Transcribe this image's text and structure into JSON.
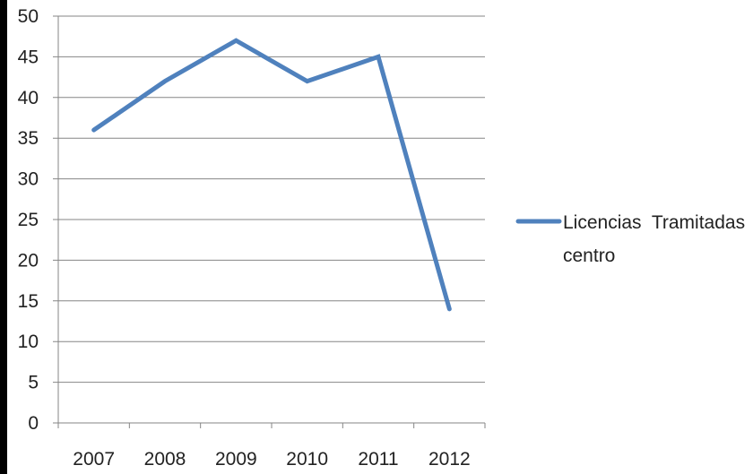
{
  "chart_data": {
    "type": "line",
    "categories": [
      "2007",
      "2008",
      "2009",
      "2010",
      "2011",
      "2012"
    ],
    "series": [
      {
        "name": "Licencias  Tramitadas centro",
        "name_lines": [
          "Licencias  Tramitadas",
          "centro"
        ],
        "values": [
          36,
          42,
          47,
          42,
          45,
          14
        ],
        "color": "#4f81bd"
      }
    ],
    "yticks": [
      "0",
      "5",
      "10",
      "15",
      "20",
      "25",
      "30",
      "35",
      "40",
      "45",
      "50"
    ],
    "ylim": [
      0,
      50
    ],
    "grid": true,
    "legend": "right",
    "gridline_color": "#868686"
  }
}
